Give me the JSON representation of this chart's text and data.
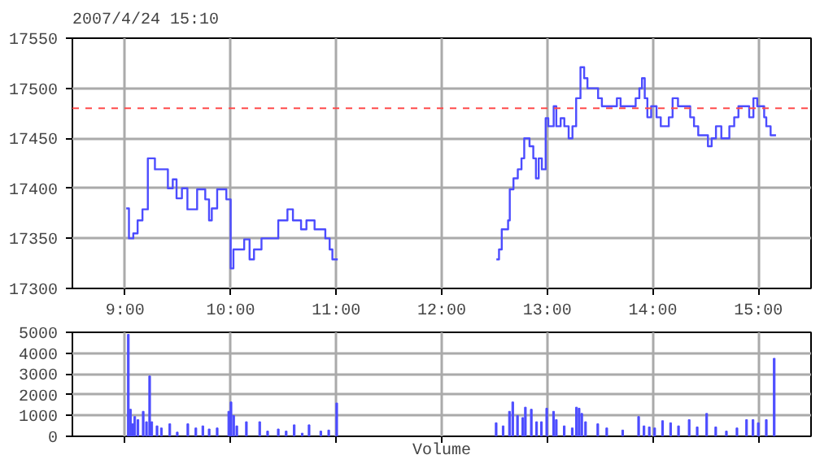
{
  "chart_data": [
    {
      "type": "step",
      "subtitle": "2007/4/24 15:10",
      "series": [
        {
          "color": "#4c4cff",
          "x": [
            9.01,
            9.036,
            9.077,
            9.118,
            9.164,
            9.215,
            9.282,
            9.405,
            9.451,
            9.487,
            9.538,
            9.59,
            9.682,
            9.759,
            9.795,
            9.821,
            9.872,
            9.959,
            10.0,
            10.026,
            10.128,
            10.179,
            10.221,
            10.292,
            10.451,
            10.538,
            10.59,
            10.667,
            10.718,
            10.795,
            10.897,
            10.938,
            10.964,
            11.015,
            11.5,
            12.518,
            12.543,
            12.569,
            12.629,
            12.645,
            12.68,
            12.721,
            12.756,
            12.782,
            12.832,
            12.868,
            12.893,
            12.919,
            12.949,
            12.985,
            13.01,
            13.061,
            13.086,
            13.127,
            13.162,
            13.203,
            13.239,
            13.274,
            13.315,
            13.35,
            13.381,
            13.482,
            13.518,
            13.66,
            13.695,
            13.838,
            13.873,
            13.898,
            13.924,
            13.949,
            13.985,
            14.036,
            14.076,
            14.152,
            14.188,
            14.239,
            14.355,
            14.391,
            14.431,
            14.523,
            14.558,
            14.599,
            14.65,
            14.726,
            14.772,
            14.812,
            14.914,
            14.954,
            14.99,
            15.056,
            15.076,
            15.117,
            15.168
          ],
          "values": [
            17380,
            17350,
            17355,
            17368,
            17379,
            17430,
            17419,
            17400,
            17409,
            17390,
            17400,
            17379,
            17399,
            17389,
            17368,
            17380,
            17399,
            17389,
            17320,
            17339,
            17349,
            17329,
            17339,
            17350,
            17368,
            17379,
            17368,
            17359,
            17368,
            17359,
            17350,
            17339,
            17329,
            17329,
            null,
            17329,
            17339,
            17359,
            17368,
            17399,
            17410,
            17419,
            17430,
            17450,
            17442,
            17430,
            17410,
            17430,
            17419,
            17470,
            17462,
            17482,
            17462,
            17470,
            17462,
            17450,
            17462,
            17490,
            17521,
            17510,
            17500,
            17490,
            17482,
            17490,
            17482,
            17490,
            17500,
            17510,
            17490,
            17471,
            17482,
            17471,
            17462,
            17471,
            17490,
            17482,
            17471,
            17462,
            17453,
            17442,
            17450,
            17462,
            17450,
            17462,
            17471,
            17482,
            17471,
            17490,
            17482,
            17471,
            17462,
            17453,
            17453
          ]
        }
      ],
      "xlim": [
        8.5,
        15.5
      ],
      "ylim": [
        17300,
        17550
      ],
      "xticks": [
        {
          "value": 9,
          "label": "9:00"
        },
        {
          "value": 10,
          "label": "10:00"
        },
        {
          "value": 11,
          "label": "11:00"
        },
        {
          "value": 12,
          "label": "12:00"
        },
        {
          "value": 13,
          "label": "13:00"
        },
        {
          "value": 14,
          "label": "14:00"
        },
        {
          "value": 15,
          "label": "15:00"
        }
      ],
      "yticks": [
        17300,
        17350,
        17400,
        17450,
        17500,
        17550
      ],
      "grid": true,
      "ref_lines": [
        {
          "axis": "y",
          "value": 17480,
          "color": "#ff4c4c",
          "line_style": "dashed"
        }
      ]
    },
    {
      "type": "bar",
      "xlabel": "Volume",
      "series": [
        {
          "color": "#4c4cff",
          "x": [
            9.03,
            9.05,
            9.071,
            9.091,
            9.121,
            9.171,
            9.202,
            9.232,
            9.252,
            9.302,
            9.343,
            9.423,
            9.494,
            9.594,
            9.67,
            9.736,
            9.796,
            9.872,
            9.982,
            10.003,
            10.028,
            10.058,
            10.149,
            10.275,
            10.35,
            10.451,
            10.526,
            10.602,
            10.678,
            10.743,
            10.854,
            10.929,
            11.005,
            12.516,
            12.582,
            12.642,
            12.673,
            12.718,
            12.768,
            12.793,
            12.849,
            12.899,
            12.945,
            12.995,
            13.06,
            13.086,
            13.161,
            13.237,
            13.277,
            13.302,
            13.327,
            13.363,
            13.479,
            13.564,
            13.715,
            13.866,
            13.917,
            13.967,
            14.018,
            14.093,
            14.169,
            14.244,
            14.345,
            14.421,
            14.511,
            14.597,
            14.698,
            14.798,
            14.889,
            14.95,
            15.0,
            15.076,
            15.151
          ],
          "values": [
            4900,
            1300,
            600,
            950,
            800,
            1200,
            700,
            2900,
            700,
            500,
            400,
            600,
            200,
            600,
            400,
            500,
            350,
            400,
            1200,
            1650,
            1000,
            500,
            700,
            700,
            250,
            350,
            250,
            550,
            150,
            550,
            250,
            300,
            1600,
            650,
            500,
            1200,
            1650,
            1000,
            900,
            1400,
            1300,
            700,
            700,
            1350,
            1200,
            800,
            500,
            400,
            1400,
            1350,
            1100,
            700,
            600,
            400,
            300,
            950,
            500,
            450,
            400,
            750,
            650,
            500,
            800,
            450,
            1100,
            450,
            250,
            400,
            800,
            800,
            650,
            800,
            3750
          ]
        }
      ],
      "xlim": [
        8.5,
        15.5
      ],
      "ylim": [
        0,
        5000
      ],
      "xticks": [
        {
          "value": 9,
          "label": null
        },
        {
          "value": 10,
          "label": null
        },
        {
          "value": 11,
          "label": null
        },
        {
          "value": 12,
          "label": null
        },
        {
          "value": 13,
          "label": null
        },
        {
          "value": 14,
          "label": null
        },
        {
          "value": 15,
          "label": null
        }
      ],
      "yticks": [
        0,
        1000,
        2000,
        3000,
        4000,
        5000
      ],
      "grid": true,
      "tick_labels": "y"
    }
  ]
}
